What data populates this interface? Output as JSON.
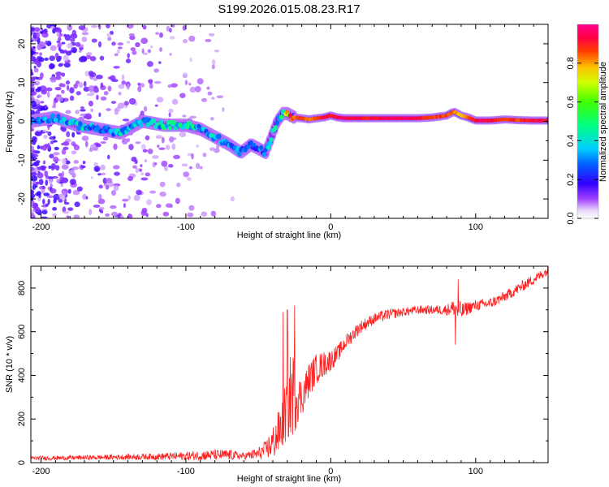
{
  "figure_title": "S199.2026.015.08.23.R17",
  "chart_data": [
    {
      "type": "heatmap",
      "name": "spectrogram",
      "xlabel": "Height of straight line (km)",
      "ylabel": "Frequency (Hz)",
      "xlim": [
        -207,
        150
      ],
      "ylim": [
        -25,
        25
      ],
      "xticks": [
        -200,
        -100,
        0,
        100
      ],
      "xtick_labels": [
        "-200",
        "-100",
        "0",
        "100"
      ],
      "yticks": [
        20,
        10,
        0,
        -10,
        -20
      ],
      "ytick_labels": [
        "20",
        "10",
        "0",
        "-10",
        "-20"
      ],
      "colorbar": {
        "label": "Normalized spectral amplitude",
        "range": [
          0,
          1
        ],
        "ticks": [
          0.0,
          0.2,
          0.4,
          0.6,
          0.8
        ],
        "tick_labels": [
          "0.0",
          "0.2",
          "0.4",
          "0.6",
          "0.8"
        ],
        "colors": [
          "#ffffff",
          "#c8a8f0",
          "#7a00ff",
          "#0000ff",
          "#00e5ff",
          "#00ff00",
          "#ffff00",
          "#ff7a00",
          "#ff0000",
          "#ff0080"
        ]
      },
      "ridge": {
        "description_free": true,
        "x": [
          -207,
          -190,
          -175,
          -160,
          -145,
          -130,
          -115,
          -100,
          -90,
          -80,
          -70,
          -62,
          -55,
          -50,
          -45,
          -40,
          -37,
          -33,
          -30,
          -25,
          -20,
          -15,
          -10,
          -5,
          0,
          5,
          10,
          20,
          30,
          40,
          50,
          60,
          70,
          80,
          85,
          90,
          95,
          100,
          105,
          110,
          120,
          130,
          140,
          150
        ],
        "freq": [
          0,
          1,
          -1,
          -2,
          -3,
          0,
          -1,
          -1,
          -2,
          -4,
          -6,
          -8,
          -6,
          -7,
          -8,
          -3,
          0,
          2,
          2,
          1,
          0.8,
          0.5,
          0.8,
          1,
          1.5,
          1,
          0.8,
          0.8,
          0.8,
          0.8,
          0.8,
          0.8,
          1,
          1.5,
          2.5,
          1.5,
          1,
          0.2,
          0.2,
          0.2,
          0.5,
          0.3,
          0.2,
          0.2
        ],
        "amplitude": [
          0.25,
          0.3,
          0.35,
          0.3,
          0.35,
          0.3,
          0.4,
          0.45,
          0.35,
          0.35,
          0.3,
          0.3,
          0.25,
          0.25,
          0.3,
          0.35,
          0.4,
          0.45,
          0.7,
          0.85,
          0.9,
          0.85,
          0.9,
          0.95,
          0.95,
          0.95,
          0.98,
          0.95,
          0.95,
          0.98,
          0.98,
          0.95,
          0.9,
          0.9,
          0.85,
          0.8,
          0.85,
          0.95,
          0.98,
          0.95,
          0.9,
          0.9,
          0.95,
          0.95
        ]
      }
    },
    {
      "type": "line",
      "name": "snr",
      "xlabel": "Height of straight line (km)",
      "ylabel": "SNR (10 * v/v)",
      "xlim": [
        -207,
        150
      ],
      "ylim": [
        0,
        900
      ],
      "xticks": [
        -200,
        -100,
        0,
        100
      ],
      "xtick_labels": [
        "-200",
        "-100",
        "0",
        "100"
      ],
      "yticks": [
        0,
        200,
        400,
        600,
        800
      ],
      "ytick_labels": [
        "0",
        "200",
        "400",
        "600",
        "800"
      ],
      "color": "#ff2020",
      "envelope": {
        "x": [
          -207,
          -180,
          -150,
          -120,
          -100,
          -80,
          -70,
          -60,
          -50,
          -45,
          -40,
          -35,
          -30,
          -28,
          -25,
          -22,
          -20,
          -15,
          -10,
          -5,
          0,
          5,
          10,
          20,
          30,
          40,
          50,
          60,
          70,
          80,
          85,
          88,
          90,
          95,
          100,
          110,
          120,
          130,
          140,
          150
        ],
        "mean": [
          20,
          22,
          25,
          28,
          30,
          35,
          35,
          30,
          40,
          60,
          90,
          150,
          250,
          300,
          330,
          300,
          300,
          380,
          430,
          450,
          470,
          500,
          550,
          620,
          660,
          680,
          690,
          700,
          700,
          700,
          710,
          700,
          690,
          710,
          720,
          730,
          760,
          800,
          840,
          880
        ],
        "noise": [
          10,
          10,
          12,
          15,
          20,
          25,
          25,
          15,
          30,
          40,
          80,
          110,
          150,
          200,
          200,
          100,
          90,
          80,
          70,
          60,
          50,
          40,
          35,
          30,
          25,
          25,
          20,
          20,
          20,
          25,
          40,
          60,
          40,
          30,
          25,
          25,
          25,
          25,
          25,
          20
        ]
      },
      "spikes": [
        {
          "x": -30,
          "y": 700
        },
        {
          "x": -25,
          "y": 720
        },
        {
          "x": -33,
          "y": 690
        },
        {
          "x": 88,
          "y": 840
        },
        {
          "x": 86,
          "y": 540
        }
      ]
    }
  ]
}
